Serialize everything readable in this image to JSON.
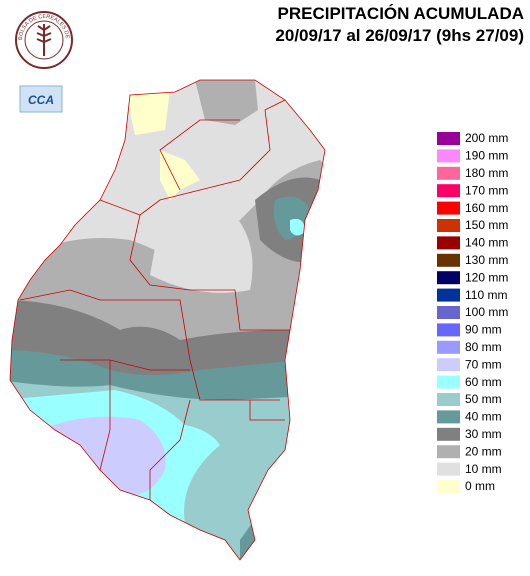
{
  "header": {
    "title": "PRECIPITACIÓN ACUMULADA",
    "subtitle": "20/09/17 al 26/09/17 (9hs 27/09)"
  },
  "logo": {
    "text": "BOLSA DE CEREALES DE ENTRE RIOS"
  },
  "badge": {
    "text": "CCA"
  },
  "legend": {
    "items": [
      {
        "label": "200 mm",
        "color": "#990099"
      },
      {
        "label": "190 mm",
        "color": "#ff88ff"
      },
      {
        "label": "180 mm",
        "color": "#ff6699"
      },
      {
        "label": "170 mm",
        "color": "#ff0066"
      },
      {
        "label": "160 mm",
        "color": "#ff0000"
      },
      {
        "label": "150 mm",
        "color": "#cc3300"
      },
      {
        "label": "140 mm",
        "color": "#990000"
      },
      {
        "label": "130 mm",
        "color": "#663300"
      },
      {
        "label": "120 mm",
        "color": "#000066"
      },
      {
        "label": "110 mm",
        "color": "#003399"
      },
      {
        "label": "100 mm",
        "color": "#6666cc"
      },
      {
        "label": "90 mm",
        "color": "#6666ff"
      },
      {
        "label": "80 mm",
        "color": "#9999ff"
      },
      {
        "label": "70 mm",
        "color": "#ccccff"
      },
      {
        "label": "60 mm",
        "color": "#99ffff"
      },
      {
        "label": "50 mm",
        "color": "#99cccc"
      },
      {
        "label": "40 mm",
        "color": "#669999"
      },
      {
        "label": "30 mm",
        "color": "#808080"
      },
      {
        "label": "20 mm",
        "color": "#b0b0b0"
      },
      {
        "label": "10 mm",
        "color": "#e0e0e0"
      },
      {
        "label": "0 mm",
        "color": "#ffffcc"
      }
    ]
  }
}
